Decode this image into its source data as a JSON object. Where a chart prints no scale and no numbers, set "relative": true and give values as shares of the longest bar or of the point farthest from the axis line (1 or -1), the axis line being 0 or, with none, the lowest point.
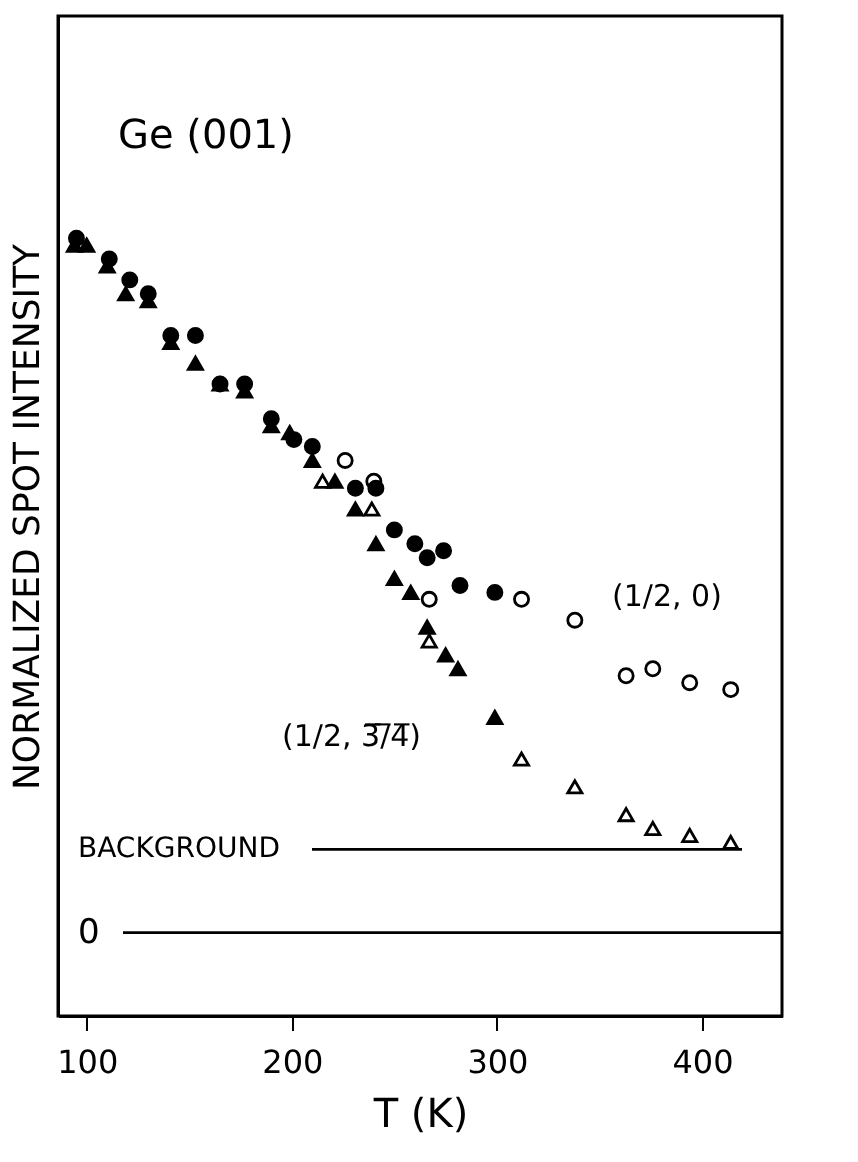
{
  "chart_data": {
    "type": "scatter",
    "relative": true,
    "xlabel": "T (K)",
    "ylabel": "NORMALIZED SPOT INTENSITY",
    "grid": false,
    "legend": false,
    "xlim": [
      86,
      439
    ],
    "xticks": [
      100,
      200,
      300,
      400
    ],
    "series": [
      {
        "color": "#000000",
        "marker": "circle",
        "x": [
          95,
          111,
          121,
          130,
          141,
          153,
          165,
          177,
          190,
          201,
          210,
          231,
          241,
          250,
          260,
          266,
          274,
          282,
          299
        ],
        "values": [
          1.0,
          0.97,
          0.94,
          0.92,
          0.86,
          0.86,
          0.79,
          0.79,
          0.74,
          0.71,
          0.7,
          0.64,
          0.64,
          0.58,
          0.56,
          0.54,
          0.55,
          0.5,
          0.49
        ]
      },
      {
        "color": "#000000",
        "marker": "triangle",
        "x": [
          94,
          100,
          110,
          119,
          130,
          141,
          153,
          165,
          177,
          190,
          199,
          210,
          221,
          231,
          241,
          250,
          258,
          266,
          275,
          281,
          299
        ],
        "values": [
          0.99,
          0.99,
          0.96,
          0.92,
          0.91,
          0.85,
          0.82,
          0.79,
          0.78,
          0.73,
          0.72,
          0.68,
          0.65,
          0.61,
          0.56,
          0.51,
          0.49,
          0.44,
          0.4,
          0.38,
          0.31
        ]
      },
      {
        "color": "#ffffff",
        "marker": "circle",
        "x": [
          226,
          240,
          267,
          312,
          338,
          363,
          376,
          394,
          414
        ],
        "values": [
          0.68,
          0.65,
          0.48,
          0.48,
          0.45,
          0.37,
          0.38,
          0.36,
          0.35
        ]
      },
      {
        "color": "#ffffff",
        "marker": "triangle",
        "x": [
          215,
          239,
          267,
          312,
          338,
          363,
          376,
          394,
          414
        ],
        "values": [
          0.65,
          0.61,
          0.42,
          0.25,
          0.21,
          0.17,
          0.15,
          0.14,
          0.13
        ]
      }
    ],
    "ref_lines": [
      {
        "axis": "y",
        "value": 0,
        "label": "0"
      },
      {
        "axis": "y",
        "value": 0.12,
        "label": "BACKGROUND"
      }
    ],
    "annotations": [
      "Ge (001)",
      "(1/2,  0)",
      "(1/2, 3̅/̅4̅)"
    ]
  }
}
